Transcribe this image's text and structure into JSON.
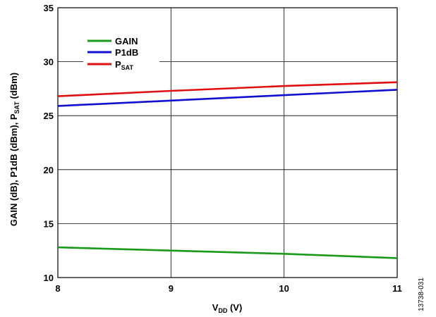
{
  "chart_data": {
    "type": "line",
    "xlim": [
      8,
      11
    ],
    "ylim": [
      10,
      35
    ],
    "x_ticks": [
      "8",
      "9",
      "10",
      "11"
    ],
    "y_ticks": [
      "10",
      "15",
      "20",
      "25",
      "30",
      "35"
    ],
    "xlabel": {
      "main": "V",
      "sub": "DD",
      "unit": " (V)"
    },
    "ylabel": {
      "part1": "GAIN (dB), P1dB (dBm), P",
      "sub": "SAT",
      "part2": " (dBm)"
    },
    "grid": true,
    "legend_position": "top-left",
    "series": [
      {
        "name": "GAIN",
        "color": "#1a9a1a",
        "x": [
          8,
          9,
          10,
          11
        ],
        "y": [
          12.8,
          12.5,
          12.2,
          11.8
        ]
      },
      {
        "name": "P1dB",
        "color": "#1010d0",
        "x": [
          8,
          9,
          10,
          11
        ],
        "y": [
          25.9,
          26.4,
          26.9,
          27.4
        ]
      },
      {
        "name": "P",
        "name_sub": "SAT",
        "color": "#e01010",
        "x": [
          8,
          9,
          10,
          11
        ],
        "y": [
          26.8,
          27.3,
          27.75,
          28.1
        ]
      }
    ]
  },
  "figure_id": "13738-031"
}
